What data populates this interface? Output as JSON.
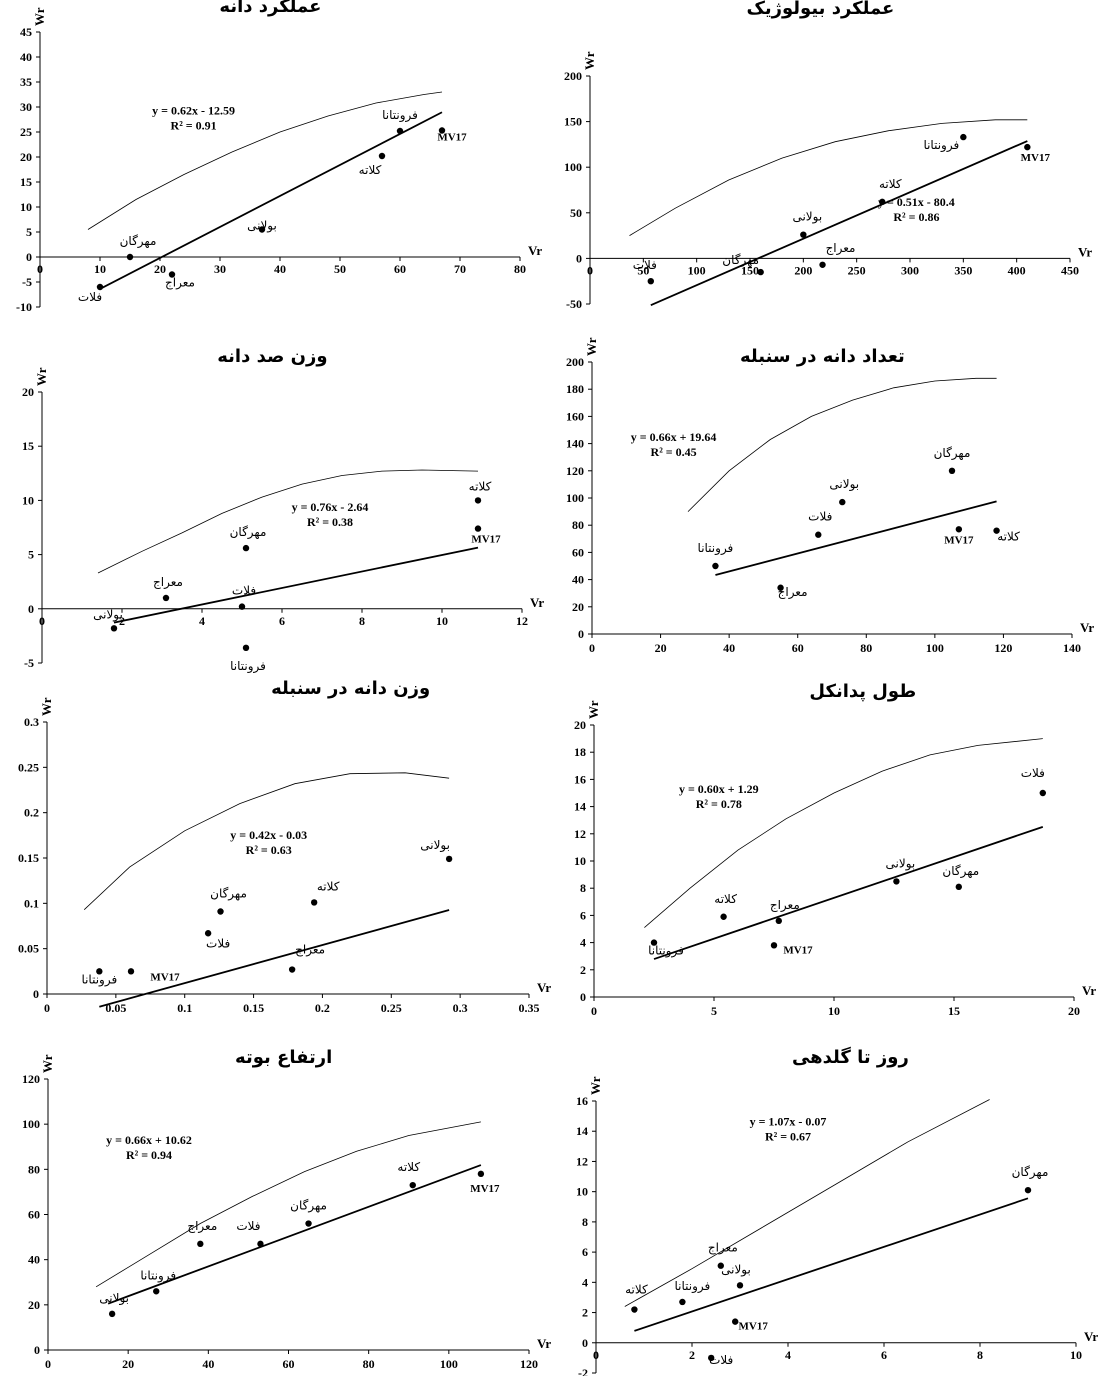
{
  "chart_data": [
    {
      "type": "scatter",
      "title": "عملکرد دانه",
      "xlabel": "Vr",
      "ylabel": "Wr",
      "xlim": [
        0,
        80
      ],
      "ylim": [
        -10,
        45
      ],
      "xticks": [
        "0",
        "10",
        "20",
        "30",
        "40",
        "50",
        "60",
        "70",
        "80"
      ],
      "yticks": [
        "-10",
        "-5",
        "0",
        "5",
        "10",
        "15",
        "20",
        "25",
        "30",
        "35",
        "40",
        "45"
      ],
      "points": [
        {
          "label": "فلات",
          "x": 10,
          "y": -6
        },
        {
          "label": "مهرگان",
          "x": 15,
          "y": 0
        },
        {
          "label": "معراج",
          "x": 22,
          "y": -3.5
        },
        {
          "label": "بولانی",
          "x": 37,
          "y": 5.5
        },
        {
          "label": "کلاته",
          "x": 57,
          "y": 20.2
        },
        {
          "label": "فرونتانا",
          "x": 60,
          "y": 25.2
        },
        {
          "label": "MV17",
          "x": 67,
          "y": 25.3
        }
      ],
      "regression": {
        "equation": "y = 0.62x - 12.59",
        "r2": "R² = 0.91",
        "slope": 0.62,
        "intercept": -12.59,
        "x_range": [
          10,
          67
        ]
      },
      "parabola_x": [
        8,
        16,
        24,
        32,
        40,
        48,
        56,
        64,
        67
      ],
      "parabola_y": [
        5.5,
        11.5,
        16.5,
        21,
        25,
        28.2,
        30.8,
        32.5,
        33
      ]
    },
    {
      "type": "scatter",
      "title": "عملکرد بیولوژیک",
      "xlabel": "Vr",
      "ylabel": "Wr",
      "xlim": [
        0,
        450
      ],
      "ylim": [
        -50,
        200
      ],
      "xticks": [
        "0",
        "50",
        "100",
        "150",
        "200",
        "250",
        "300",
        "350",
        "400",
        "450"
      ],
      "yticks": [
        "-50",
        "0",
        "50",
        "100",
        "150",
        "200"
      ],
      "points": [
        {
          "label": "فلات",
          "x": 57,
          "y": -25
        },
        {
          "label": "مهرگان",
          "x": 160,
          "y": -15
        },
        {
          "label": "معراج",
          "x": 218,
          "y": -7
        },
        {
          "label": "بولانی",
          "x": 200,
          "y": 26
        },
        {
          "label": "کلاته",
          "x": 274,
          "y": 62
        },
        {
          "label": "فرونتانا",
          "x": 350,
          "y": 133
        },
        {
          "label": "MV17",
          "x": 410,
          "y": 122
        }
      ],
      "regression": {
        "equation": "y = 0.51x - 80.4",
        "r2": "R² = 0.86",
        "slope": 0.51,
        "intercept": -80.4,
        "x_range": [
          57,
          410
        ]
      },
      "parabola_x": [
        37,
        80,
        130,
        180,
        230,
        280,
        330,
        380,
        410
      ],
      "parabola_y": [
        25,
        55,
        86,
        110,
        128,
        140,
        148,
        152,
        152
      ]
    },
    {
      "type": "scatter",
      "title": "وزن  صد دانه",
      "xlabel": "Vr",
      "ylabel": "Wr",
      "xlim": [
        0,
        12
      ],
      "ylim": [
        -5,
        20
      ],
      "xticks": [
        "0",
        "2",
        "4",
        "6",
        "8",
        "10",
        "12"
      ],
      "yticks": [
        "-5",
        "0",
        "5",
        "10",
        "15",
        "20"
      ],
      "points": [
        {
          "label": "بولانی",
          "x": 1.8,
          "y": -1.8
        },
        {
          "label": "معراج",
          "x": 3.1,
          "y": 1.0
        },
        {
          "label": "مهرگان",
          "x": 5.1,
          "y": 5.6
        },
        {
          "label": "فلات",
          "x": 5.0,
          "y": 0.2
        },
        {
          "label": "فرونتانا",
          "x": 5.1,
          "y": -3.6
        },
        {
          "label": "کلاته",
          "x": 10.9,
          "y": 10.0
        },
        {
          "label": "MV17",
          "x": 10.9,
          "y": 7.4
        }
      ],
      "regression": {
        "equation": "y = 0.76x - 2.64",
        "r2": "R² = 0.38",
        "slope": 0.76,
        "intercept": -2.64,
        "x_range": [
          1.8,
          10.9
        ]
      },
      "parabola_x": [
        1.4,
        2.5,
        3.5,
        4.5,
        5.5,
        6.5,
        7.5,
        8.5,
        9.5,
        10.9
      ],
      "parabola_y": [
        3.3,
        5.3,
        7.0,
        8.8,
        10.3,
        11.5,
        12.3,
        12.7,
        12.8,
        12.7
      ]
    },
    {
      "type": "scatter",
      "title": "تعداد دانه در سنبله",
      "xlabel": "Vr",
      "ylabel": "Wr",
      "xlim": [
        0,
        140
      ],
      "ylim": [
        0,
        200
      ],
      "xticks": [
        "0",
        "20",
        "40",
        "60",
        "80",
        "100",
        "120",
        "140"
      ],
      "yticks": [
        "0",
        "20",
        "40",
        "60",
        "80",
        "100",
        "120",
        "140",
        "160",
        "180",
        "200"
      ],
      "points": [
        {
          "label": "فرونتانا",
          "x": 36,
          "y": 50
        },
        {
          "label": "معراج",
          "x": 55,
          "y": 34
        },
        {
          "label": "فلات",
          "x": 66,
          "y": 73
        },
        {
          "label": "بولانی",
          "x": 73,
          "y": 97
        },
        {
          "label": "مهرگان",
          "x": 105,
          "y": 120
        },
        {
          "label": "MV17",
          "x": 107,
          "y": 77
        },
        {
          "label": "کلاته",
          "x": 118,
          "y": 76
        }
      ],
      "regression": {
        "equation": "y = 0.66x + 19.64",
        "r2": "R² = 0.45",
        "slope": 0.66,
        "intercept": 19.64,
        "x_range": [
          36,
          118
        ]
      },
      "parabola_x": [
        28,
        40,
        52,
        64,
        76,
        88,
        100,
        112,
        118
      ],
      "parabola_y": [
        90,
        120,
        143,
        160,
        172,
        181,
        186,
        188,
        188
      ]
    },
    {
      "type": "scatter",
      "title": "وزن دانه در سنبله",
      "xlabel": "Vr",
      "ylabel": "Wr",
      "xlim": [
        0,
        0.35
      ],
      "ylim": [
        0,
        0.3
      ],
      "xticks": [
        "0",
        "0.05",
        "0.1",
        "0.15",
        "0.2",
        "0.25",
        "0.3",
        "0.35"
      ],
      "yticks": [
        "0",
        "0.05",
        "0.1",
        "0.15",
        "0.2",
        "0.25",
        "0.3"
      ],
      "points": [
        {
          "label": "فرونتانا",
          "x": 0.038,
          "y": 0.025
        },
        {
          "label": "MV17",
          "x": 0.061,
          "y": 0.025
        },
        {
          "label": "فلات",
          "x": 0.117,
          "y": 0.067
        },
        {
          "label": "مهرگان",
          "x": 0.126,
          "y": 0.091
        },
        {
          "label": "معراج",
          "x": 0.178,
          "y": 0.027
        },
        {
          "label": "کلاته",
          "x": 0.194,
          "y": 0.101
        },
        {
          "label": "بولانی",
          "x": 0.292,
          "y": 0.149
        }
      ],
      "regression": {
        "equation": "y = 0.42x - 0.03",
        "r2": "R² = 0.63",
        "slope": 0.42,
        "intercept": -0.03,
        "x_range": [
          0.038,
          0.292
        ]
      },
      "parabola_x": [
        0.027,
        0.06,
        0.1,
        0.14,
        0.18,
        0.22,
        0.26,
        0.292
      ],
      "parabola_y": [
        0.093,
        0.14,
        0.18,
        0.21,
        0.232,
        0.243,
        0.244,
        0.238
      ]
    },
    {
      "type": "scatter",
      "title": "طول پدانکل",
      "xlabel": "Vr",
      "ylabel": "Wr",
      "xlim": [
        0,
        20
      ],
      "ylim": [
        0,
        20
      ],
      "xticks": [
        "0",
        "5",
        "10",
        "15",
        "20"
      ],
      "yticks": [
        "0",
        "2",
        "4",
        "6",
        "8",
        "10",
        "12",
        "14",
        "16",
        "18",
        "20"
      ],
      "points": [
        {
          "label": "فرونتانا",
          "x": 2.5,
          "y": 4.0
        },
        {
          "label": "کلاته",
          "x": 5.4,
          "y": 5.9
        },
        {
          "label": "MV17",
          "x": 7.5,
          "y": 3.8
        },
        {
          "label": "معراج",
          "x": 7.7,
          "y": 5.6
        },
        {
          "label": "بولانی",
          "x": 12.6,
          "y": 8.5
        },
        {
          "label": "مهرگان",
          "x": 15.2,
          "y": 8.1
        },
        {
          "label": "فلات",
          "x": 18.7,
          "y": 15.0
        }
      ],
      "regression": {
        "equation": "y = 0.60x + 1.29",
        "r2": "R² = 0.78",
        "slope": 0.6,
        "intercept": 1.29,
        "x_range": [
          2.5,
          18.7
        ]
      },
      "parabola_x": [
        2.1,
        4,
        6,
        8,
        10,
        12,
        14,
        16,
        18.7
      ],
      "parabola_y": [
        5.1,
        8.0,
        10.8,
        13.1,
        15.0,
        16.6,
        17.8,
        18.5,
        19.0
      ]
    },
    {
      "type": "scatter",
      "title": "ارتفاع بوته",
      "xlabel": "Vr",
      "ylabel": "Wr",
      "xlim": [
        0,
        120
      ],
      "ylim": [
        0,
        120
      ],
      "xticks": [
        "0",
        "20",
        "40",
        "60",
        "80",
        "100",
        "120"
      ],
      "yticks": [
        "0",
        "20",
        "40",
        "60",
        "80",
        "100",
        "120"
      ],
      "points": [
        {
          "label": "بولانی",
          "x": 16,
          "y": 16
        },
        {
          "label": "فرونتانا",
          "x": 27,
          "y": 26
        },
        {
          "label": "معراج",
          "x": 38,
          "y": 47
        },
        {
          "label": "فلات",
          "x": 53,
          "y": 47
        },
        {
          "label": "مهرگان",
          "x": 65,
          "y": 56
        },
        {
          "label": "کلاته",
          "x": 91,
          "y": 73
        },
        {
          "label": "MV17",
          "x": 108,
          "y": 78
        }
      ],
      "regression": {
        "equation": "y = 0.66x + 10.62",
        "r2": "R² = 0.94",
        "slope": 0.66,
        "intercept": 10.62,
        "x_range": [
          15,
          108
        ]
      },
      "parabola_x": [
        12,
        25,
        38,
        51,
        64,
        77,
        90,
        108
      ],
      "parabola_y": [
        28,
        42,
        56,
        68,
        79,
        88,
        95,
        101
      ]
    },
    {
      "type": "scatter",
      "title": "روز تا گلدهی",
      "xlabel": "Vr",
      "ylabel": "Wr",
      "xlim": [
        0,
        10
      ],
      "ylim": [
        -2,
        16
      ],
      "xticks": [
        "0",
        "2",
        "4",
        "6",
        "8",
        "10"
      ],
      "yticks": [
        "-2",
        "0",
        "2",
        "4",
        "6",
        "8",
        "10",
        "12",
        "14",
        "16"
      ],
      "points": [
        {
          "label": "کلاته",
          "x": 0.8,
          "y": 2.2
        },
        {
          "label": "فرونتانا",
          "x": 1.8,
          "y": 2.7
        },
        {
          "label": "فلات",
          "x": 2.4,
          "y": -1.0
        },
        {
          "label": "معراج",
          "x": 2.6,
          "y": 5.1
        },
        {
          "label": "MV17",
          "x": 2.9,
          "y": 1.4
        },
        {
          "label": "بولانی",
          "x": 3.0,
          "y": 3.8
        },
        {
          "label": "مهرگان",
          "x": 9.0,
          "y": 10.1
        }
      ],
      "regression": {
        "equation": "y = 1.07x - 0.07",
        "r2": "R² = 0.67",
        "slope": 1.07,
        "intercept": -0.07,
        "x_range": [
          0.8,
          9.0
        ]
      },
      "parabola_x": [
        0.6,
        2,
        3.5,
        5,
        6.5,
        8.2
      ],
      "parabola_y": [
        2.4,
        4.9,
        7.7,
        10.5,
        13.3,
        16.1
      ]
    }
  ]
}
